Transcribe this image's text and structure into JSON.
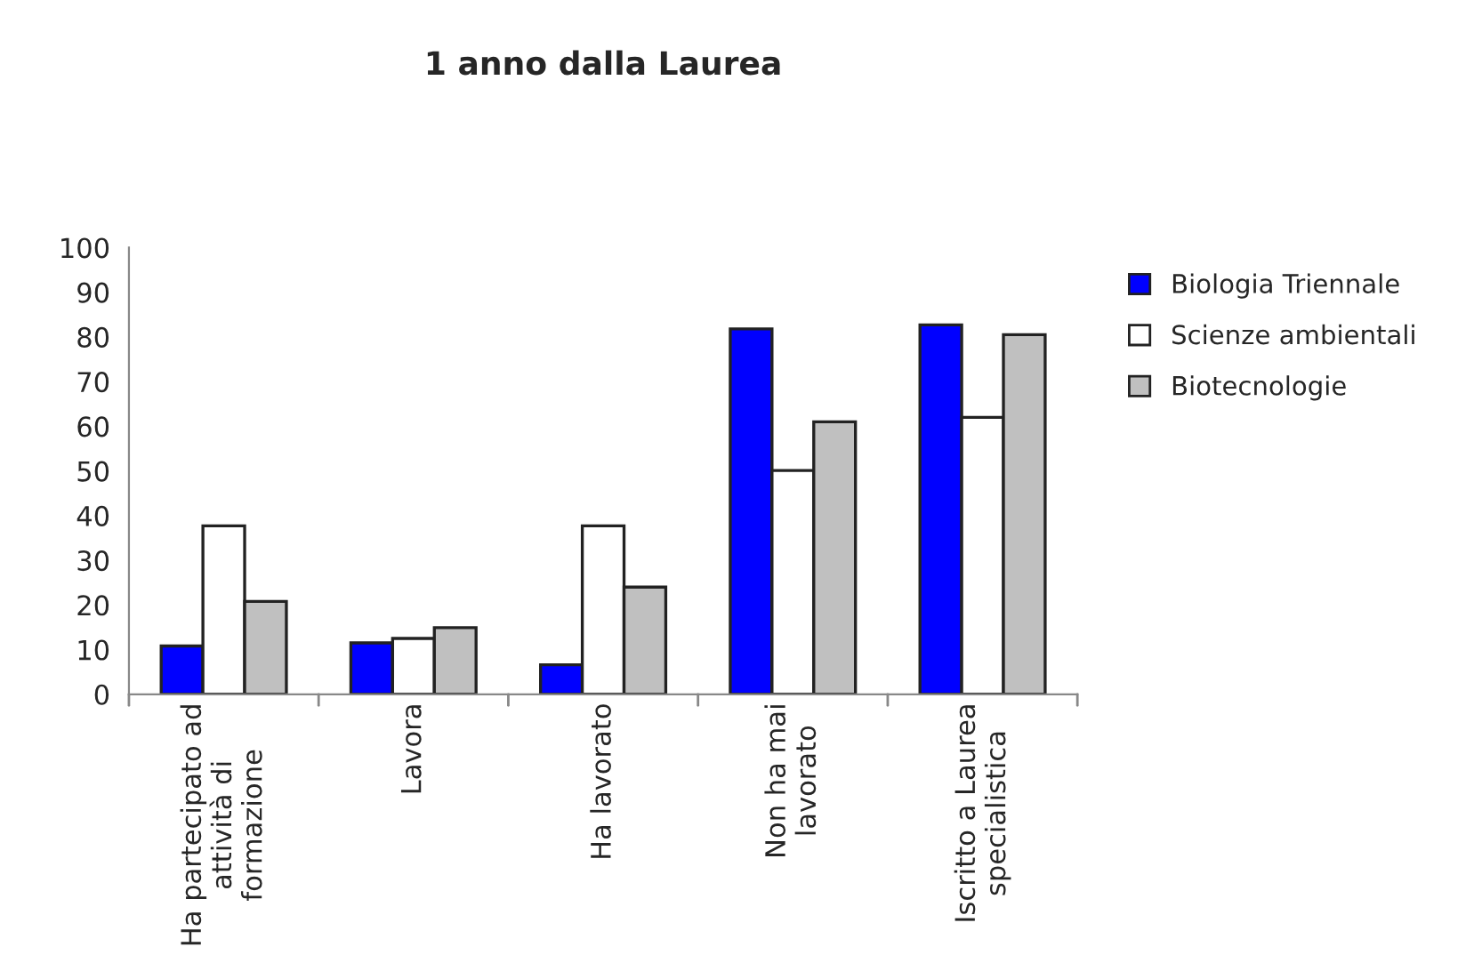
{
  "chart_data": {
    "type": "bar",
    "title": "1 anno dalla Laurea",
    "categories": [
      "Ha partecipato ad\nattività di\nformazione",
      "Lavora",
      "Ha lavorato",
      "Non ha mai\nlavorato",
      "Iscritto a Laurea\nspecialistica"
    ],
    "series": [
      {
        "name": "Biologia Triennale",
        "color": "#0000ff",
        "values": [
          10.8,
          11.5,
          6.6,
          81.8,
          82.7
        ]
      },
      {
        "name": "Scienze ambientali",
        "color": "#ffffff",
        "values": [
          37.7,
          12.5,
          37.7,
          50.1,
          62
        ]
      },
      {
        "name": "Biotecnologie",
        "color": "#c0c0c0",
        "values": [
          20.8,
          14.9,
          24,
          61,
          80.5
        ]
      }
    ],
    "ylim": [
      0,
      100
    ],
    "yticks": [
      0,
      10,
      20,
      30,
      40,
      50,
      60,
      70,
      80,
      90,
      100
    ],
    "grid": false,
    "legend": "right"
  }
}
